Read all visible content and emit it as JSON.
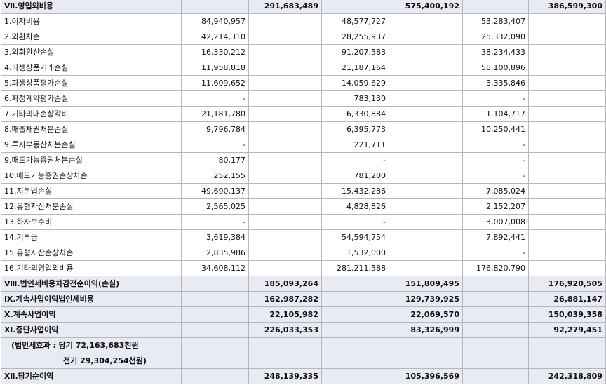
{
  "rows": [
    {
      "label": "Ⅶ.영업외비용",
      "c1": "",
      "c2": "291,683,489",
      "c3": "",
      "c4": "575,400,192",
      "c5": "",
      "c6": "386,599,300",
      "style": "section"
    },
    {
      "label": "1.이자비용",
      "c1": "84,940,957",
      "c2": "",
      "c3": "48,577,727",
      "c4": "",
      "c5": "53,283,407",
      "c6": "",
      "style": "plain"
    },
    {
      "label": "2.외환차손",
      "c1": "42,214,310",
      "c2": "",
      "c3": "28,255,937",
      "c4": "",
      "c5": "25,332,090",
      "c6": "",
      "style": "plain"
    },
    {
      "label": "3.외화환산손실",
      "c1": "16,330,212",
      "c2": "",
      "c3": "91,207,583",
      "c4": "",
      "c5": "38,234,433",
      "c6": "",
      "style": "plain"
    },
    {
      "label": "4.파생상품거래손실",
      "c1": "11,958,818",
      "c2": "",
      "c3": "21,187,164",
      "c4": "",
      "c5": "58,100,896",
      "c6": "",
      "style": "plain"
    },
    {
      "label": "5.파생상품평가손실",
      "c1": "11,609,652",
      "c2": "",
      "c3": "14,059,629",
      "c4": "",
      "c5": "3,335,846",
      "c6": "",
      "style": "plain"
    },
    {
      "label": "6.확정계약평가손실",
      "c1": "-",
      "c2": "",
      "c3": "783,130",
      "c4": "",
      "c5": "-",
      "c6": "",
      "style": "plain"
    },
    {
      "label": "7.기타의대손상각비",
      "c1": "21,181,780",
      "c2": "",
      "c3": "6,330,884",
      "c4": "",
      "c5": "1,104,717",
      "c6": "",
      "style": "plain"
    },
    {
      "label": "8.매출채권처분손실",
      "c1": "9,796,784",
      "c2": "",
      "c3": "6,395,773",
      "c4": "",
      "c5": "10,250,441",
      "c6": "",
      "style": "plain"
    },
    {
      "label": "9.투자부동산처분손실",
      "c1": "-",
      "c2": "",
      "c3": "221,711",
      "c4": "",
      "c5": "-",
      "c6": "",
      "style": "plain"
    },
    {
      "label": "9.매도가능증권처분손실",
      "c1": "80,177",
      "c2": "",
      "c3": "-",
      "c4": "",
      "c5": "-",
      "c6": "",
      "style": "plain"
    },
    {
      "label": "10.매도가능증권손상차손",
      "c1": "252,155",
      "c2": "",
      "c3": "781,200",
      "c4": "",
      "c5": "-",
      "c6": "",
      "style": "plain"
    },
    {
      "label": "11.지분법손실",
      "c1": "49,690,137",
      "c2": "",
      "c3": "15,432,286",
      "c4": "",
      "c5": "7,085,024",
      "c6": "",
      "style": "plain"
    },
    {
      "label": "12.유형자산처분손실",
      "c1": "2,565,025",
      "c2": "",
      "c3": "4,828,826",
      "c4": "",
      "c5": "2,152,207",
      "c6": "",
      "style": "plain"
    },
    {
      "label": "13.하자보수비",
      "c1": "-",
      "c2": "",
      "c3": "-",
      "c4": "",
      "c5": "3,007,008",
      "c6": "",
      "style": "plain"
    },
    {
      "label": "14.기부금",
      "c1": "3,619,384",
      "c2": "",
      "c3": "54,594,754",
      "c4": "",
      "c5": "7,892,441",
      "c6": "",
      "style": "plain"
    },
    {
      "label": "15.유형자산손상차손",
      "c1": "2,835,986",
      "c2": "",
      "c3": "1,532,000",
      "c4": "",
      "c5": "-",
      "c6": "",
      "style": "plain"
    },
    {
      "label": "16.기타의영업외비용",
      "c1": "34,608,112",
      "c2": "",
      "c3": "281,211,588",
      "c4": "",
      "c5": "176,820,790",
      "c6": "",
      "style": "plain"
    },
    {
      "label": "Ⅷ.법인세비용차감전순이익(손실)",
      "c1": "",
      "c2": "185,093,264",
      "c3": "",
      "c4": "151,809,495",
      "c5": "",
      "c6": "176,920,505",
      "style": "section"
    },
    {
      "label": "Ⅸ.계속사업이익법인세비용",
      "c1": "",
      "c2": "162,987,282",
      "c3": "",
      "c4": "129,739,925",
      "c5": "",
      "c6": "26,881,147",
      "style": "section"
    },
    {
      "label": "Ⅹ.계속사업이익",
      "c1": "",
      "c2": "22,105,982",
      "c3": "",
      "c4": "22,069,570",
      "c5": "",
      "c6": "150,039,358",
      "style": "section"
    },
    {
      "label": "Ⅺ.중단사업이익",
      "c1": "",
      "c2": "226,033,353",
      "c3": "",
      "c4": "83,326,999",
      "c5": "",
      "c6": "92,279,451",
      "style": "section"
    },
    {
      "label": "(법인세효과 : 당기 72,163,683천원",
      "c1": "",
      "c2": "",
      "c3": "",
      "c4": "",
      "c5": "",
      "c6": "",
      "style": "note1"
    },
    {
      "label": "전기 29,304,254천원)",
      "c1": "",
      "c2": "",
      "c3": "",
      "c4": "",
      "c5": "",
      "c6": "",
      "style": "note2"
    },
    {
      "label": "Ⅻ.당기순이익",
      "c1": "",
      "c2": "248,139,335",
      "c3": "",
      "c4": "105,396,569",
      "c5": "",
      "c6": "242,318,809",
      "style": "section"
    }
  ]
}
